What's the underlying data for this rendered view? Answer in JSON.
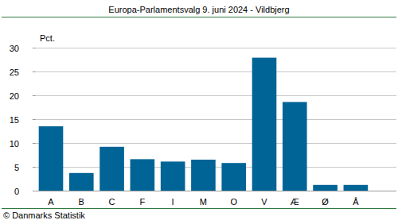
{
  "chart_data": {
    "type": "bar",
    "title": "Europa-Parlamentsvalg 9. juni 2024 - Vildbjerg",
    "y_label": "Pct.",
    "source": "© Danmarks Statistik",
    "categories": [
      "A",
      "B",
      "C",
      "F",
      "I",
      "M",
      "O",
      "V",
      "Æ",
      "Ø",
      "Å"
    ],
    "values": [
      13.5,
      3.7,
      9.2,
      6.6,
      6.1,
      6.5,
      5.8,
      27.9,
      18.6,
      1.2,
      1.2
    ],
    "color": "#006496",
    "ylim": [
      0,
      30
    ],
    "yticks": [
      0,
      5,
      10,
      15,
      20,
      25,
      30
    ],
    "grid": true
  }
}
